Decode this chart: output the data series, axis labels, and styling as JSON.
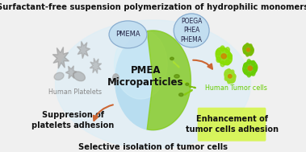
{
  "title_top": "Surfactant-free suspension polymerization of hydrophilic monomers",
  "title_bottom": "Selective isolation of tumor cells",
  "label_pmea": "PMEA\nMicroparticles",
  "label_pmema": "PMEMA",
  "label_poega": "POEGA\nPHEA\nPHEMA",
  "label_platelets": "Human Platelets",
  "label_tumor": "Human Tumor cells",
  "label_suppression": "Suppresion of\nplatelets adhesion",
  "label_enhancement": "Enhancement of\ntumor cells adhesion",
  "bg_color": "#f0f0f0",
  "title_color": "#111111",
  "center_circle_color": "#b8ddf0",
  "pmema_bubble_color": "#c0ddf0",
  "poega_bubble_color": "#c0ddf0",
  "green_highlight_color": "#d4f542",
  "tumor_color": "#88dd00",
  "tumor_dark": "#55aa00",
  "platelet_color": "#999999",
  "arrow_color": "#cc6633",
  "suppression_text_color": "#111111",
  "enhancement_text_color": "#111111",
  "platelets_text_color": "#888888",
  "tumor_text_color": "#66cc00",
  "green_cell_color": "#aadd22",
  "green_cell_dark": "#558800"
}
